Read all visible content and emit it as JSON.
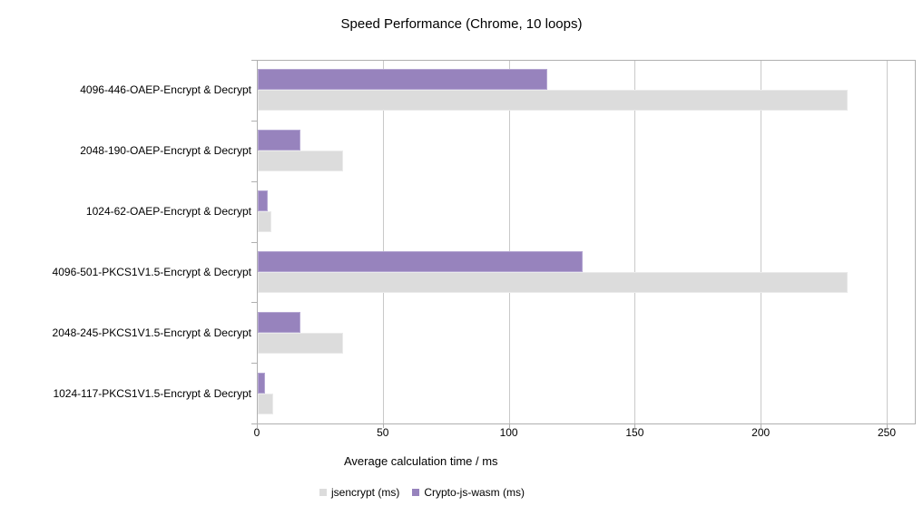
{
  "chart_data": {
    "type": "bar",
    "orientation": "horizontal",
    "title": "Speed Performance (Chrome, 10 loops)",
    "xlabel": "Average calculation time / ms",
    "categories": [
      "4096-446-OAEP-Encrypt & Decrypt",
      "2048-190-OAEP-Encrypt & Decrypt",
      "1024-62-OAEP-Encrypt & Decrypt",
      "4096-501-PKCS1V1.5-Encrypt & Decrypt",
      "2048-245-PKCS1V1.5-Encrypt & Decrypt",
      "1024-117-PKCS1V1.5-Encrypt & Decrypt"
    ],
    "series": [
      {
        "name": "jsencrypt (ms)",
        "color": "#dcdcdc",
        "border": "#eaeaea",
        "values": [
          234,
          34,
          5.5,
          234,
          34,
          6
        ]
      },
      {
        "name": "Crypto-js-wasm (ms)",
        "color": "#9783bd",
        "border": "#b4a6d2",
        "values": [
          115,
          17,
          4,
          129,
          17,
          3
        ]
      }
    ],
    "xlim": [
      0,
      250
    ],
    "xticks": [
      0,
      50,
      100,
      150,
      200,
      250
    ],
    "grid": true,
    "legend_position": "bottom"
  }
}
